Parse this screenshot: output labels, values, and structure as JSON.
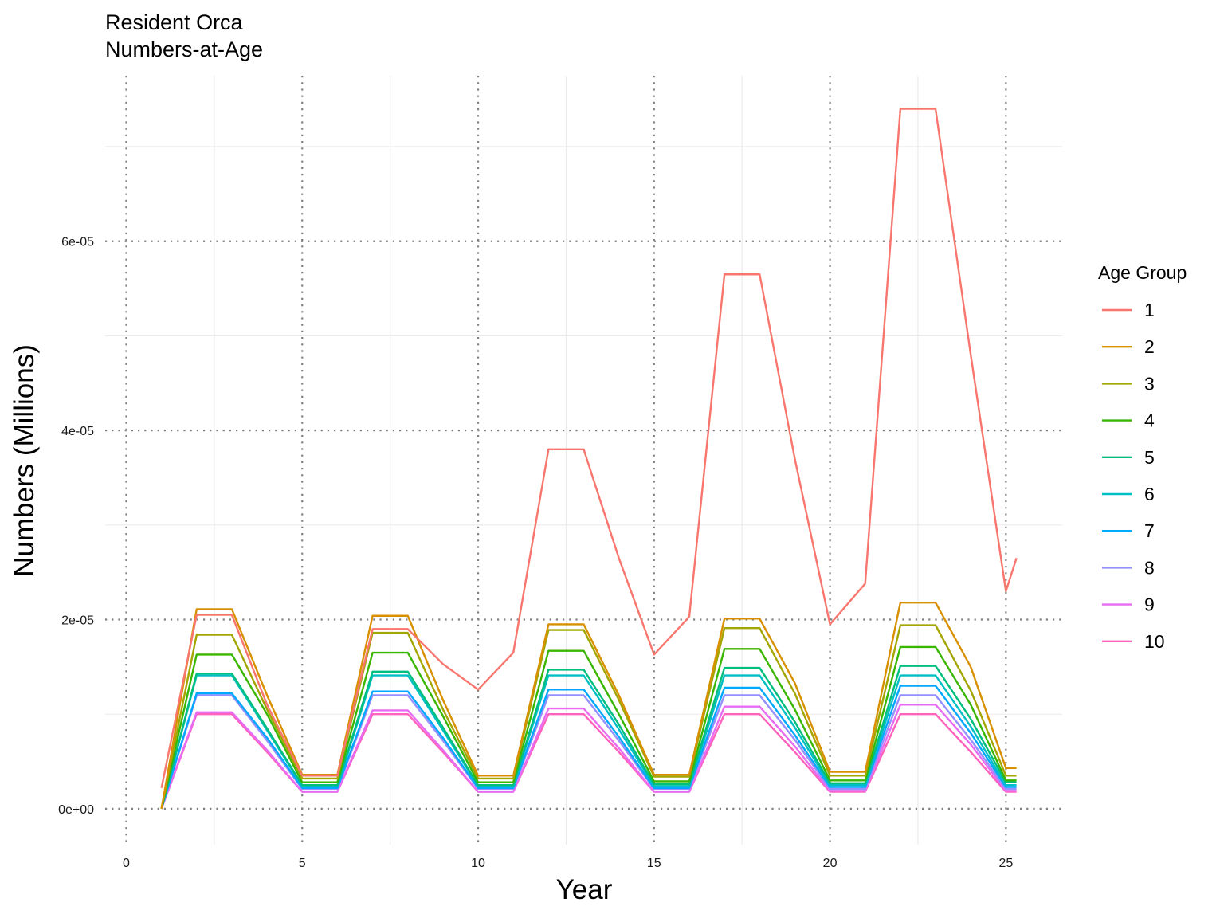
{
  "chart_data": {
    "type": "line",
    "title": [
      "Resident Orca",
      "Numbers-at-Age"
    ],
    "xlabel": "Year",
    "ylabel": "Numbers (Millions)",
    "xlim": [
      -0.6,
      26.6
    ],
    "ylim": [
      -3.8e-06,
      7.75e-05
    ],
    "x_ticks": [
      0,
      5,
      10,
      15,
      20,
      25
    ],
    "x_tick_labels": [
      "0",
      "5",
      "10",
      "15",
      "20",
      "25"
    ],
    "y_ticks": [
      0,
      2e-05,
      4e-05,
      6e-05
    ],
    "y_tick_labels": [
      "0e+00",
      "2e-05",
      "4e-05",
      "6e-05"
    ],
    "y_minor_ticks": [
      1e-05,
      3e-05,
      5e-05,
      7e-05
    ],
    "x_minor_ticks": [
      2.5,
      7.5,
      12.5,
      17.5,
      22.5
    ],
    "grid": true,
    "major_grid_style": "dotted",
    "legend_title": "Age Group",
    "legend_position": "right",
    "x": [
      1,
      2,
      3,
      4,
      5,
      6,
      7,
      8,
      9,
      10,
      11,
      12,
      13,
      14,
      15,
      16,
      17,
      18,
      19,
      20,
      21,
      22,
      23,
      24,
      25,
      25.3
    ],
    "series": [
      {
        "name": "1",
        "color": "#F8766D",
        "values": [
          2.2e-06,
          2.05e-05,
          2.05e-05,
          1.1e-05,
          3.5e-06,
          3.5e-06,
          1.9e-05,
          1.9e-05,
          1.53e-05,
          1.26e-05,
          1.65e-05,
          3.8e-05,
          3.8e-05,
          2.65e-05,
          1.63e-05,
          2.03e-05,
          5.65e-05,
          5.65e-05,
          3.7e-05,
          1.95e-05,
          2.38e-05,
          7.4e-05,
          7.4e-05,
          4.8e-05,
          2.3e-05,
          2.65e-05
        ]
      },
      {
        "name": "2",
        "color": "#D89000",
        "values": [
          0,
          2.11e-05,
          2.11e-05,
          1.2e-05,
          3.6e-06,
          3.6e-06,
          2.04e-05,
          2.04e-05,
          1.15e-05,
          3.5e-06,
          3.5e-06,
          1.95e-05,
          1.95e-05,
          1.2e-05,
          3.6e-06,
          3.6e-06,
          2.01e-05,
          2.01e-05,
          1.33e-05,
          3.9e-06,
          3.9e-06,
          2.18e-05,
          2.18e-05,
          1.5e-05,
          4.3e-06,
          4.3e-06
        ]
      },
      {
        "name": "3",
        "color": "#A3A500",
        "values": [
          0,
          1.84e-05,
          1.84e-05,
          1.05e-05,
          3.2e-06,
          3.2e-06,
          1.86e-05,
          1.86e-05,
          1.05e-05,
          3.2e-06,
          3.2e-06,
          1.89e-05,
          1.89e-05,
          1.15e-05,
          3.4e-06,
          3.4e-06,
          1.91e-05,
          1.91e-05,
          1.22e-05,
          3.5e-06,
          3.5e-06,
          1.94e-05,
          1.94e-05,
          1.25e-05,
          3.5e-06,
          3.5e-06
        ]
      },
      {
        "name": "4",
        "color": "#39B600",
        "values": [
          0,
          1.63e-05,
          1.63e-05,
          1e-05,
          2.8e-06,
          2.8e-06,
          1.65e-05,
          1.65e-05,
          9.8e-06,
          2.8e-06,
          2.8e-06,
          1.67e-05,
          1.67e-05,
          1e-05,
          2.9e-06,
          2.9e-06,
          1.69e-05,
          1.69e-05,
          1.05e-05,
          3e-06,
          3e-06,
          1.71e-05,
          1.71e-05,
          1.1e-05,
          3e-06,
          3e-06
        ]
      },
      {
        "name": "5",
        "color": "#00BF7D",
        "values": [
          0,
          1.43e-05,
          1.43e-05,
          8.5e-06,
          2.5e-06,
          2.5e-06,
          1.45e-05,
          1.45e-05,
          8.6e-06,
          2.5e-06,
          2.5e-06,
          1.47e-05,
          1.47e-05,
          8.9e-06,
          2.6e-06,
          2.6e-06,
          1.49e-05,
          1.49e-05,
          9.2e-06,
          2.7e-06,
          2.7e-06,
          1.51e-05,
          1.51e-05,
          9.5e-06,
          2.8e-06,
          2.8e-06
        ]
      },
      {
        "name": "6",
        "color": "#00BFC4",
        "values": [
          0,
          1.41e-05,
          1.41e-05,
          8.3e-06,
          2.4e-06,
          2.4e-06,
          1.41e-05,
          1.41e-05,
          8.3e-06,
          2.4e-06,
          2.4e-06,
          1.41e-05,
          1.41e-05,
          8.4e-06,
          2.4e-06,
          2.4e-06,
          1.41e-05,
          1.41e-05,
          8.6e-06,
          2.5e-06,
          2.5e-06,
          1.41e-05,
          1.41e-05,
          8.7e-06,
          2.5e-06,
          2.5e-06
        ]
      },
      {
        "name": "7",
        "color": "#00A9FF",
        "values": [
          0,
          1.22e-05,
          1.22e-05,
          7.5e-06,
          2.2e-06,
          2.2e-06,
          1.24e-05,
          1.24e-05,
          7.5e-06,
          2.2e-06,
          2.2e-06,
          1.26e-05,
          1.26e-05,
          7.6e-06,
          2.2e-06,
          2.2e-06,
          1.28e-05,
          1.28e-05,
          7.8e-06,
          2.3e-06,
          2.3e-06,
          1.3e-05,
          1.3e-05,
          8e-06,
          2.3e-06,
          2.3e-06
        ]
      },
      {
        "name": "8",
        "color": "#9590FF",
        "values": [
          0,
          1.2e-05,
          1.2e-05,
          7.2e-06,
          2.1e-06,
          2.1e-06,
          1.2e-05,
          1.2e-05,
          7.2e-06,
          2.1e-06,
          2.1e-06,
          1.2e-05,
          1.2e-05,
          7.2e-06,
          2.1e-06,
          2.1e-06,
          1.2e-05,
          1.2e-05,
          7.3e-06,
          2.1e-06,
          2.1e-06,
          1.2e-05,
          1.2e-05,
          7.3e-06,
          2.1e-06,
          2.1e-06
        ]
      },
      {
        "name": "9",
        "color": "#E76BF3",
        "values": [
          0,
          1.02e-05,
          1.02e-05,
          6.2e-06,
          1.8e-06,
          1.8e-06,
          1.04e-05,
          1.04e-05,
          6.2e-06,
          1.8e-06,
          1.8e-06,
          1.06e-05,
          1.06e-05,
          6.4e-06,
          1.8e-06,
          1.8e-06,
          1.08e-05,
          1.08e-05,
          6.6e-06,
          1.9e-06,
          1.9e-06,
          1.1e-05,
          1.1e-05,
          6.8e-06,
          1.9e-06,
          1.9e-06
        ]
      },
      {
        "name": "10",
        "color": "#FF62BC",
        "values": [
          0,
          1e-05,
          1e-05,
          6e-06,
          1.8e-06,
          1.8e-06,
          1e-05,
          1e-05,
          6e-06,
          1.8e-06,
          1.8e-06,
          1e-05,
          1e-05,
          6e-06,
          1.8e-06,
          1.8e-06,
          1e-05,
          1e-05,
          6e-06,
          1.8e-06,
          1.8e-06,
          1e-05,
          1e-05,
          6e-06,
          1.8e-06,
          1.8e-06
        ]
      }
    ]
  }
}
